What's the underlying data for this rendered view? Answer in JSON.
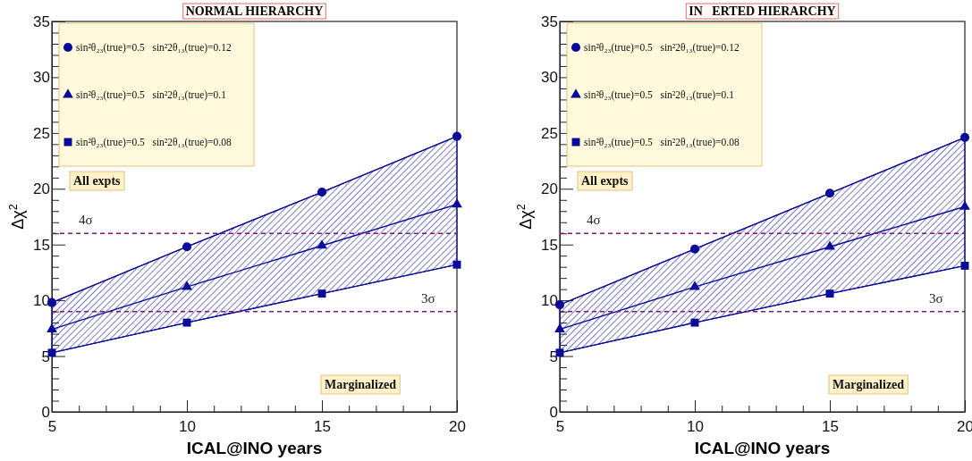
{
  "chart_data": [
    {
      "type": "line",
      "title": "NORMAL HIERARCHY",
      "xlabel": "ICAL@INO years",
      "ylabel": "Δχ$^{2}$",
      "x": [
        5,
        10,
        15,
        20
      ],
      "xlim": [
        5,
        20
      ],
      "ylim": [
        0,
        35
      ],
      "xticks": [
        5,
        {
          "value": 6,
          "label": null
        },
        {
          "value": 7,
          "label": null
        },
        {
          "value": 8,
          "label": null
        },
        {
          "value": 9,
          "label": null
        },
        10,
        {
          "value": 11,
          "label": null
        },
        {
          "value": 12,
          "label": null
        },
        {
          "value": 13,
          "label": null
        },
        {
          "value": 14,
          "label": null
        },
        15,
        {
          "value": 16,
          "label": null
        },
        {
          "value": 17,
          "label": null
        },
        {
          "value": 18,
          "label": null
        },
        {
          "value": 19,
          "label": null
        },
        20
      ],
      "yticks": [
        0,
        {
          "value": 1,
          "label": null
        },
        {
          "value": 2,
          "label": null
        },
        {
          "value": 3,
          "label": null
        },
        {
          "value": 4,
          "label": null
        },
        5,
        {
          "value": 6,
          "label": null
        },
        {
          "value": 7,
          "label": null
        },
        {
          "value": 8,
          "label": null
        },
        {
          "value": 9,
          "label": null
        },
        10,
        {
          "value": 11,
          "label": null
        },
        {
          "value": 12,
          "label": null
        },
        {
          "value": 13,
          "label": null
        },
        {
          "value": 14,
          "label": null
        },
        15,
        {
          "value": 16,
          "label": null
        },
        {
          "value": 17,
          "label": null
        },
        {
          "value": 18,
          "label": null
        },
        {
          "value": 19,
          "label": null
        },
        20,
        {
          "value": 21,
          "label": null
        },
        {
          "value": 22,
          "label": null
        },
        {
          "value": 23,
          "label": null
        },
        {
          "value": 24,
          "label": null
        },
        25,
        {
          "value": 26,
          "label": null
        },
        {
          "value": 27,
          "label": null
        },
        {
          "value": 28,
          "label": null
        },
        {
          "value": 29,
          "label": null
        },
        30,
        {
          "value": 31,
          "label": null
        },
        {
          "value": 32,
          "label": null
        },
        {
          "value": 33,
          "label": null
        },
        {
          "value": 34,
          "label": null
        },
        35
      ],
      "grid": false,
      "legend": "top left",
      "line_style": "solid",
      "series": [
        {
          "name": "sin²θ₂₃(true)=0.5   sin²2θ₁₃(true)=0.12",
          "color": "#0b0b99",
          "marker": "circle",
          "values": [
            9.8,
            14.8,
            19.7,
            24.7
          ]
        },
        {
          "name": "sin²θ₂₃(true)=0.5   sin²2θ₁₃(true)=0.1",
          "color": "#0b0b99",
          "marker": "triangle",
          "values": [
            7.4,
            11.2,
            14.9,
            18.6
          ],
          "lower": [
            5.3,
            8.0,
            10.6,
            13.2
          ],
          "upper": [
            9.8,
            14.8,
            19.7,
            24.7
          ]
        },
        {
          "name": "sin²θ₂₃(true)=0.5   sin²2θ₁₃(true)=0.08",
          "color": "#0b0b99",
          "marker": "square",
          "values": [
            5.3,
            8.0,
            10.6,
            13.2
          ]
        }
      ],
      "ref_lines": [
        {
          "axis": "y",
          "value": 16,
          "label": "4σ",
          "color": "#7a1a7a",
          "line_style": "dashed"
        },
        {
          "axis": "y",
          "value": 9,
          "label": "3σ",
          "color": "#7a1a7a",
          "line_style": "dashed"
        }
      ],
      "annotations": [
        "All expts",
        "Marginalized"
      ]
    },
    {
      "type": "line",
      "title": "IN   ERTED HIERARCHY",
      "xlabel": "ICAL@INO years",
      "ylabel": "Δχ$^{2}$",
      "x": [
        5,
        10,
        15,
        20
      ],
      "xlim": [
        5,
        20
      ],
      "ylim": [
        0,
        35
      ],
      "xticks": [
        5,
        {
          "value": 6,
          "label": null
        },
        {
          "value": 7,
          "label": null
        },
        {
          "value": 8,
          "label": null
        },
        {
          "value": 9,
          "label": null
        },
        10,
        {
          "value": 11,
          "label": null
        },
        {
          "value": 12,
          "label": null
        },
        {
          "value": 13,
          "label": null
        },
        {
          "value": 14,
          "label": null
        },
        15,
        {
          "value": 16,
          "label": null
        },
        {
          "value": 17,
          "label": null
        },
        {
          "value": 18,
          "label": null
        },
        {
          "value": 19,
          "label": null
        },
        20
      ],
      "yticks": [
        0,
        {
          "value": 1,
          "label": null
        },
        {
          "value": 2,
          "label": null
        },
        {
          "value": 3,
          "label": null
        },
        {
          "value": 4,
          "label": null
        },
        5,
        {
          "value": 6,
          "label": null
        },
        {
          "value": 7,
          "label": null
        },
        {
          "value": 8,
          "label": null
        },
        {
          "value": 9,
          "label": null
        },
        10,
        {
          "value": 11,
          "label": null
        },
        {
          "value": 12,
          "label": null
        },
        {
          "value": 13,
          "label": null
        },
        {
          "value": 14,
          "label": null
        },
        15,
        {
          "value": 16,
          "label": null
        },
        {
          "value": 17,
          "label": null
        },
        {
          "value": 18,
          "label": null
        },
        {
          "value": 19,
          "label": null
        },
        20,
        {
          "value": 21,
          "label": null
        },
        {
          "value": 22,
          "label": null
        },
        {
          "value": 23,
          "label": null
        },
        {
          "value": 24,
          "label": null
        },
        25,
        {
          "value": 26,
          "label": null
        },
        {
          "value": 27,
          "label": null
        },
        {
          "value": 28,
          "label": null
        },
        {
          "value": 29,
          "label": null
        },
        30,
        {
          "value": 31,
          "label": null
        },
        {
          "value": 32,
          "label": null
        },
        {
          "value": 33,
          "label": null
        },
        {
          "value": 34,
          "label": null
        },
        35
      ],
      "grid": false,
      "legend": "top left",
      "line_style": "solid",
      "series": [
        {
          "name": "sin²θ₂₃(true)=0.5   sin²2θ₁₃(true)=0.12",
          "color": "#0b0b99",
          "marker": "circle",
          "values": [
            9.6,
            14.6,
            19.6,
            24.6
          ]
        },
        {
          "name": "sin²θ₂₃(true)=0.5   sin²2θ₁₃(true)=0.1",
          "color": "#0b0b99",
          "marker": "triangle",
          "values": [
            7.4,
            11.2,
            14.8,
            18.4
          ],
          "lower": [
            5.3,
            8.0,
            10.6,
            13.1
          ],
          "upper": [
            9.6,
            14.6,
            19.6,
            24.6
          ]
        },
        {
          "name": "sin²θ₂₃(true)=0.5   sin²2θ₁₃(true)=0.08",
          "color": "#0b0b99",
          "marker": "square",
          "values": [
            5.3,
            8.0,
            10.6,
            13.1
          ]
        }
      ],
      "ref_lines": [
        {
          "axis": "y",
          "value": 16,
          "label": "4σ",
          "color": "#7a1a7a",
          "line_style": "dashed"
        },
        {
          "axis": "y",
          "value": 9,
          "label": "3σ",
          "color": "#7a1a7a",
          "line_style": "dashed"
        }
      ],
      "annotations": [
        "All expts",
        "Marginalized"
      ]
    }
  ]
}
